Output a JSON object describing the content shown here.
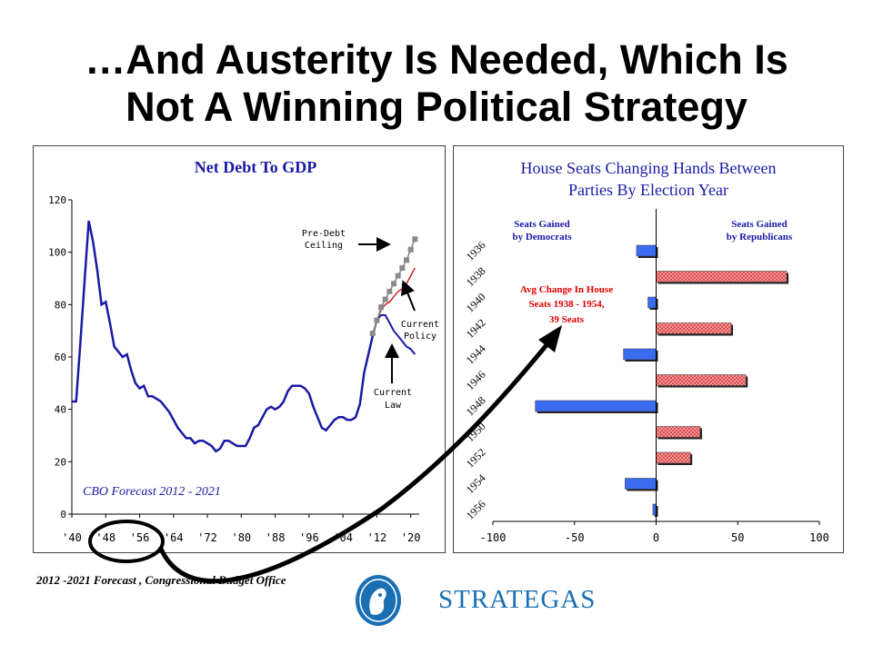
{
  "slide": {
    "title_line1": "…And Austerity Is Needed, Which Is",
    "title_line2": "Not A Winning Political Strategy",
    "source_note": "2012 -2021 Forecast , Congressional Budget Office",
    "brand": "STRATEGAS"
  },
  "colors": {
    "line": "#1a1aa6",
    "blue_bar": "#3b6cf0",
    "red_bar": "#e04a4a",
    "brand": "#1a6fb3"
  },
  "chart_data": [
    {
      "type": "line",
      "title": "Net Debt To GDP",
      "annotation_forecast": "CBO Forecast 2012 - 2021",
      "labels": {
        "pre_debt_ceiling": [
          "Pre-Debt",
          "Ceiling"
        ],
        "current_policy": [
          "Current",
          "Policy"
        ],
        "current_law": [
          "Current",
          "Law"
        ]
      },
      "x_tick_labels": [
        "'40",
        "'48",
        "'56",
        "'64",
        "'72",
        "'80",
        "'88",
        "'96",
        "'04",
        "'12",
        "'20"
      ],
      "x_ticks": [
        1940,
        1948,
        1956,
        1964,
        1972,
        1980,
        1988,
        1996,
        2004,
        2012,
        2020
      ],
      "xlim": [
        1940,
        2022
      ],
      "ylim": [
        0,
        120
      ],
      "y_ticks": [
        0,
        20,
        40,
        60,
        80,
        100,
        120
      ],
      "series": [
        {
          "x": [
            1940,
            1941,
            1942,
            1943,
            1944,
            1945,
            1946,
            1947,
            1948,
            1949,
            1950,
            1951,
            1952,
            1953,
            1954,
            1955,
            1956,
            1957,
            1958,
            1959,
            1960,
            1961,
            1962,
            1963,
            1964,
            1965,
            1966,
            1967,
            1968,
            1969,
            1970,
            1971,
            1972,
            1973,
            1974,
            1975,
            1976,
            1977,
            1978,
            1979,
            1980,
            1981,
            1982,
            1983,
            1984,
            1985,
            1986,
            1987,
            1988,
            1989,
            1990,
            1991,
            1992,
            1993,
            1994,
            1995,
            1996,
            1997,
            1998,
            1999,
            2000,
            2001,
            2002,
            2003,
            2004,
            2005,
            2006,
            2007,
            2008,
            2009,
            2010,
            2011
          ],
          "values": [
            43,
            43,
            65,
            89,
            112,
            104,
            93,
            80,
            81,
            73,
            64,
            62,
            60,
            61,
            55,
            50,
            48,
            49,
            45,
            45,
            44,
            43,
            41,
            39,
            36,
            33,
            31,
            29,
            29,
            27,
            28,
            28,
            27,
            26,
            24,
            25,
            28,
            28,
            27,
            26,
            26,
            26,
            29,
            33,
            34,
            37,
            40,
            41,
            40,
            41,
            43,
            47,
            49,
            49,
            49,
            48,
            46,
            41,
            37,
            33,
            32,
            34,
            36,
            37,
            37,
            36,
            36,
            37,
            42,
            54,
            61,
            68
          ]
        },
        {
          "name": "Current Law",
          "x": [
            2011,
            2012,
            2013,
            2014,
            2015,
            2016,
            2017,
            2018,
            2019,
            2020,
            2021
          ],
          "values": [
            68,
            74,
            76,
            76,
            73,
            70,
            68,
            66,
            64,
            63,
            61
          ]
        },
        {
          "name": "Current Policy",
          "x": [
            2011,
            2012,
            2013,
            2014,
            2015,
            2016,
            2017,
            2018,
            2019,
            2020,
            2021
          ],
          "values": [
            68,
            74,
            78,
            80,
            81,
            83,
            85,
            86,
            88,
            91,
            94
          ]
        },
        {
          "name": "Pre-Debt Ceiling",
          "x": [
            2011,
            2012,
            2013,
            2014,
            2015,
            2016,
            2017,
            2018,
            2019,
            2020,
            2021
          ],
          "values": [
            69,
            74,
            79,
            82,
            85,
            88,
            91,
            94,
            97,
            101,
            105
          ]
        }
      ]
    },
    {
      "type": "bar",
      "orientation": "horizontal",
      "title_line1": "House Seats Changing Hands Between",
      "title_line2": "Parties By Election Year",
      "label_democrats": [
        "Seats Gained",
        "by Democrats"
      ],
      "label_republicans": [
        "Seats Gained",
        "by Republicans"
      ],
      "annotation": [
        "Avg Change In House",
        "Seats 1938 - 1954,",
        "39 Seats"
      ],
      "categories": [
        "1936",
        "1938",
        "1940",
        "1942",
        "1944",
        "1946",
        "1948",
        "1950",
        "1952",
        "1954",
        "1956"
      ],
      "values": [
        -12,
        80,
        -5,
        46,
        -20,
        55,
        -74,
        27,
        21,
        -19,
        -2
      ],
      "xlim": [
        -100,
        100
      ],
      "x_ticks": [
        -100,
        -50,
        0,
        50,
        100
      ],
      "x_tick_labels": [
        "-100",
        "-50",
        "0",
        "50",
        "100"
      ]
    }
  ]
}
